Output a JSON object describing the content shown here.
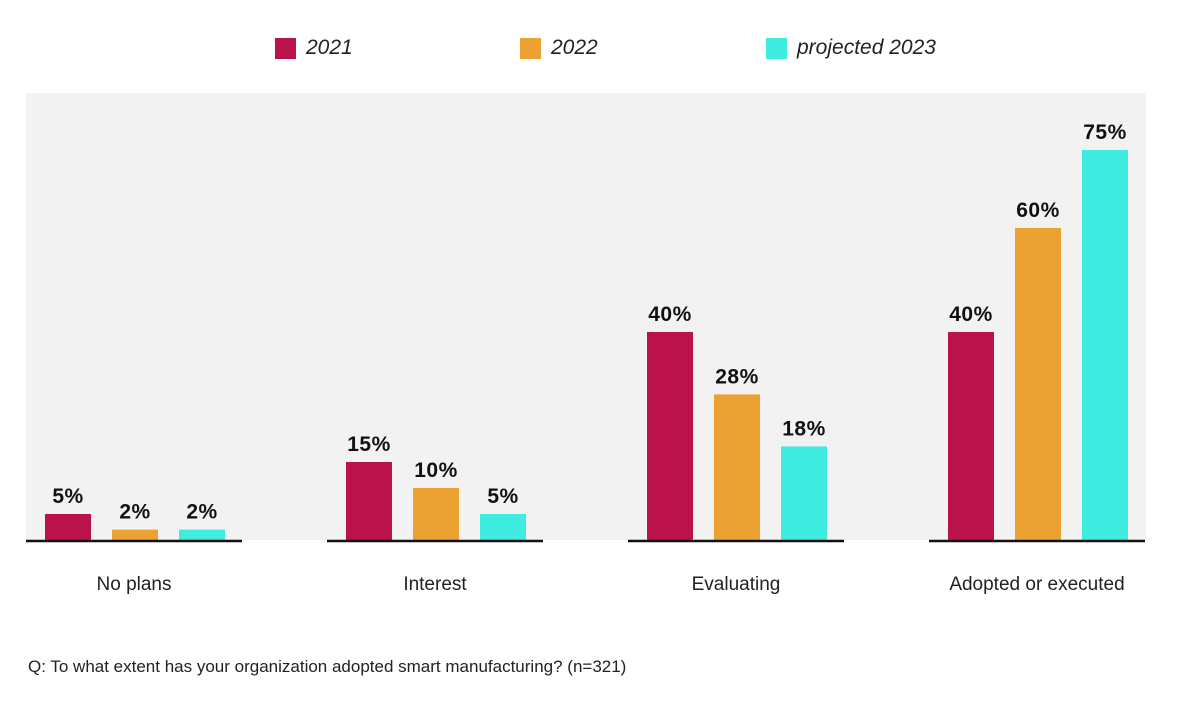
{
  "chart_data": {
    "type": "bar",
    "categories": [
      "No plans",
      "Interest",
      "Evaluating",
      "Adopted or executed"
    ],
    "series": [
      {
        "name": "2021",
        "color": "#ba134c",
        "values": [
          5,
          15,
          40,
          40
        ]
      },
      {
        "name": "2022",
        "color": "#eca233",
        "values": [
          2,
          10,
          28,
          60
        ]
      },
      {
        "name": "projected 2023",
        "color": "#3eeddf",
        "values": [
          2,
          5,
          18,
          75
        ]
      }
    ],
    "value_suffix": "%",
    "ylim": [
      0,
      80
    ],
    "legend": "top",
    "grid": false,
    "plot_background": "#f1f2f1"
  },
  "footnote": "Q: To what extent has your organization adopted smart manufacturing? (n=321)"
}
